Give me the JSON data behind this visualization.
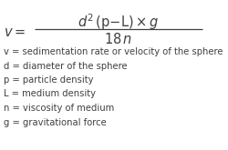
{
  "background_color": "#ffffff",
  "text_color": "#404040",
  "definitions": [
    "v = sedimentation rate or velocity of the sphere",
    "d = diameter of the sphere",
    "p = particle density",
    "L = medium density",
    "n = viscosity of medium",
    "g = gravitational force"
  ],
  "fig_width": 2.5,
  "fig_height": 1.65,
  "dpi": 100
}
